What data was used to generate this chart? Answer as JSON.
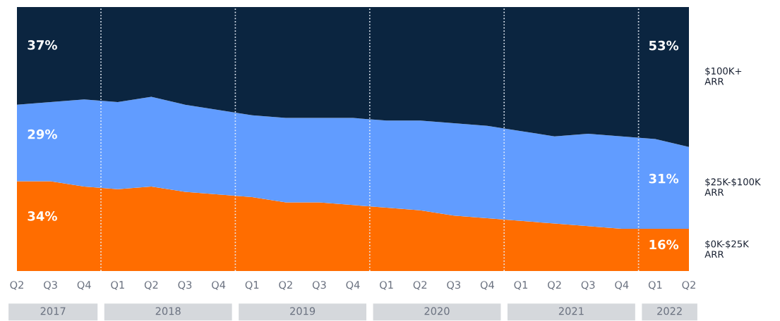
{
  "chart_data": {
    "type": "area",
    "stacked": true,
    "ylim": [
      0,
      100
    ],
    "tick_labels": "x",
    "grid": false,
    "legend": false,
    "categories": [
      "Q2",
      "Q3",
      "Q4",
      "Q1",
      "Q2",
      "Q3",
      "Q4",
      "Q1",
      "Q2",
      "Q3",
      "Q4",
      "Q1",
      "Q2",
      "Q3",
      "Q4",
      "Q1",
      "Q2",
      "Q3",
      "Q4",
      "Q1",
      "Q2"
    ],
    "series": [
      {
        "name": "$0K-$25K\nARR",
        "color": "#ff6d00",
        "values": [
          34,
          34,
          32,
          31,
          32,
          30,
          29,
          28,
          26,
          26,
          25,
          24,
          23,
          21,
          20,
          19,
          18,
          17,
          16,
          16,
          16
        ],
        "value_labels": [
          "34%",
          null,
          null,
          null,
          null,
          null,
          null,
          null,
          null,
          null,
          null,
          null,
          null,
          null,
          null,
          null,
          null,
          null,
          null,
          null,
          "16%"
        ]
      },
      {
        "name": "$25K-$100K\nARR",
        "color": "#619cff",
        "values": [
          29,
          30,
          33,
          33,
          34,
          33,
          32,
          31,
          32,
          32,
          33,
          33,
          34,
          35,
          35,
          34,
          33,
          35,
          35,
          34,
          31
        ],
        "value_labels": [
          "29%",
          null,
          null,
          null,
          null,
          null,
          null,
          null,
          null,
          null,
          null,
          null,
          null,
          null,
          null,
          null,
          null,
          null,
          null,
          null,
          "31%"
        ]
      },
      {
        "name": "$100K+\nARR",
        "color": "#0b2540",
        "values": [
          37,
          36,
          35,
          36,
          34,
          37,
          39,
          41,
          42,
          42,
          42,
          43,
          43,
          44,
          45,
          47,
          49,
          48,
          49,
          50,
          53
        ],
        "value_labels": [
          "37%",
          null,
          null,
          null,
          null,
          null,
          null,
          null,
          null,
          null,
          null,
          null,
          null,
          null,
          null,
          null,
          null,
          null,
          null,
          null,
          "53%"
        ]
      }
    ],
    "annotations": [
      "2017",
      "2018",
      "2019",
      "2020",
      "2021",
      "2022"
    ]
  }
}
